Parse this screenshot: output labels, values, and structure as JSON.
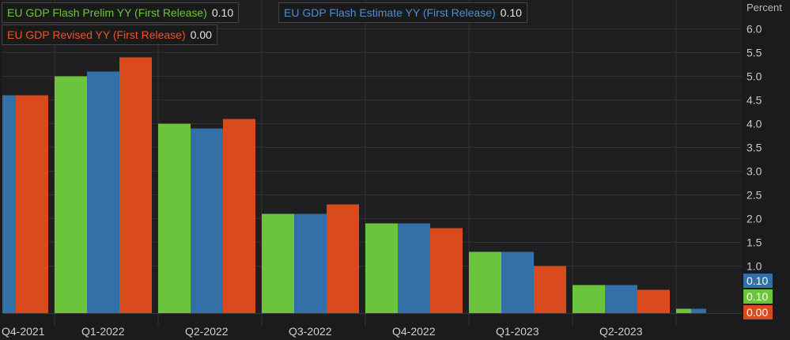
{
  "chart_data": {
    "type": "bar",
    "unit_label": "Percent",
    "categories": [
      "Q4-2021",
      "Q1-2022",
      "Q2-2022",
      "Q3-2022",
      "Q4-2022",
      "Q1-2023",
      "Q2-2023",
      ""
    ],
    "series": [
      {
        "name": "EU GDP Flash Prelim YY (First Release)",
        "latest": "0.10",
        "color": "#6cc43c",
        "values": [
          4.6,
          5.0,
          4.0,
          2.1,
          1.9,
          1.3,
          0.6,
          0.1
        ]
      },
      {
        "name": "EU GDP Flash Estimate YY (First Release)",
        "latest": "0.10",
        "color": "#3370a8",
        "values": [
          4.6,
          5.1,
          3.9,
          2.1,
          1.9,
          1.3,
          0.6,
          0.1
        ]
      },
      {
        "name": "EU GDP Revised YY (First Release)",
        "latest": "0.00",
        "color": "#d94a1c",
        "values": [
          4.6,
          5.4,
          4.1,
          2.3,
          1.8,
          1.0,
          0.5,
          0.0
        ]
      }
    ],
    "y_ticks": [
      "6.0",
      "5.5",
      "5.0",
      "4.5",
      "4.0",
      "3.5",
      "3.0",
      "2.5",
      "2.0",
      "1.5",
      "1.0"
    ],
    "ylim": [
      0,
      6.3
    ],
    "grid": true,
    "legend_position": "top-left"
  }
}
